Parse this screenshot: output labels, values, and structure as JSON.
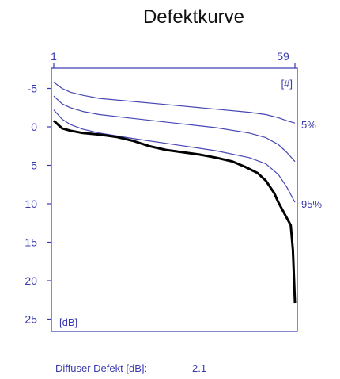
{
  "chart_data": {
    "type": "line",
    "title": "Defektkurve",
    "top_ticks": [
      "1",
      "59"
    ],
    "top_unit": "[#]",
    "y_unit": "[dB]",
    "y_ticks": [
      -5,
      0,
      5,
      10,
      15,
      20,
      25
    ],
    "y_tick_labels": [
      "-5",
      "0",
      "5",
      "10",
      "15",
      "20",
      "25"
    ],
    "ylim": [
      -7,
      26.5
    ],
    "y_inverted": true,
    "xlim": [
      1,
      59
    ],
    "grid": false,
    "colors": {
      "axis": "#3a3ab0",
      "percentile": "#4646b4",
      "measured": "#000000",
      "text": "#3a3ab0",
      "title": "#111111"
    },
    "series": [
      {
        "label": "5%",
        "x": [
          1,
          2,
          3,
          5,
          8,
          12,
          20,
          30,
          40,
          48,
          52,
          55,
          57,
          59
        ],
        "values": [
          -5.8,
          -5.4,
          -5.0,
          -4.5,
          -4.1,
          -3.7,
          -3.3,
          -2.8,
          -2.3,
          -1.9,
          -1.6,
          -1.2,
          -0.8,
          -0.5
        ]
      },
      {
        "label": "",
        "x": [
          1,
          2,
          3,
          5,
          8,
          12,
          20,
          30,
          40,
          48,
          52,
          55,
          57,
          59
        ],
        "values": [
          -4.0,
          -3.5,
          -3.0,
          -2.5,
          -2.0,
          -1.6,
          -1.1,
          -0.5,
          0.1,
          0.8,
          1.4,
          2.3,
          3.3,
          4.5
        ]
      },
      {
        "label": "95%",
        "x": [
          1,
          2,
          3,
          5,
          8,
          12,
          20,
          30,
          40,
          48,
          52,
          55,
          57,
          59
        ],
        "values": [
          -2.2,
          -1.6,
          -1.0,
          -0.3,
          0.3,
          0.8,
          1.5,
          2.3,
          3.1,
          4.0,
          4.8,
          6.2,
          7.8,
          9.8
        ]
      },
      {
        "label": "",
        "x": [
          1,
          2,
          3,
          5,
          8,
          12,
          16,
          20,
          24,
          28,
          32,
          36,
          40,
          44,
          47,
          50,
          52,
          54,
          55,
          56,
          57,
          58,
          58.5,
          59
        ],
        "values": [
          -0.8,
          -0.3,
          0.2,
          0.5,
          0.8,
          1.0,
          1.3,
          1.8,
          2.5,
          3.0,
          3.3,
          3.6,
          4.0,
          4.5,
          5.2,
          6.0,
          7.0,
          8.6,
          9.8,
          10.8,
          11.8,
          12.8,
          16.0,
          22.9
        ]
      }
    ],
    "footer": {
      "label": "Diffuser Defekt [dB]:",
      "value": "2.1"
    }
  }
}
